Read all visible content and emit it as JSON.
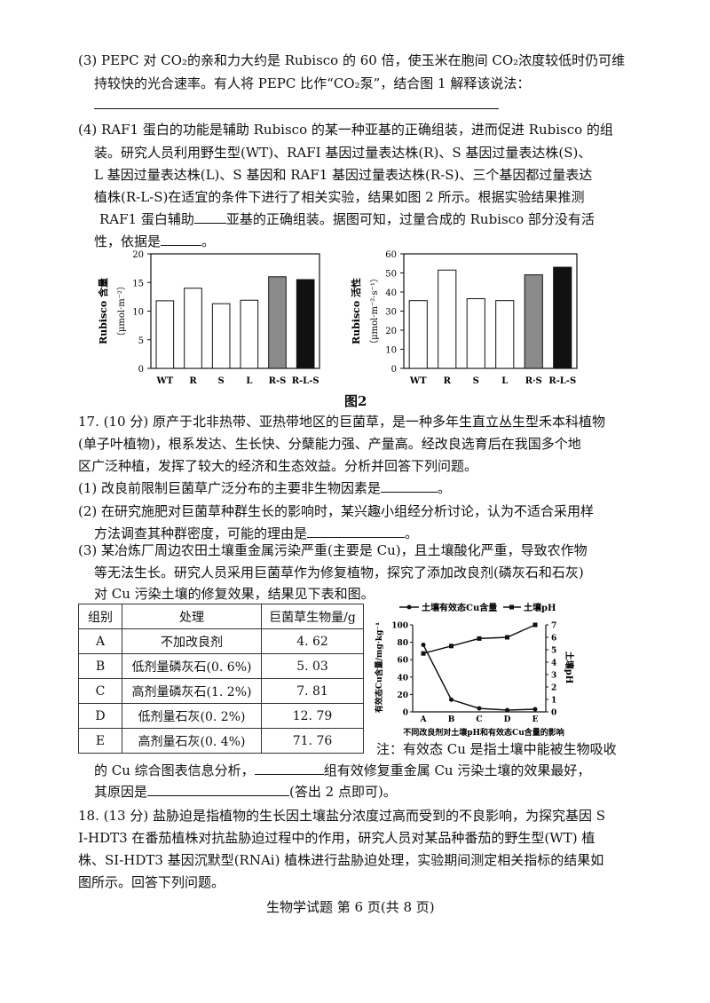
{
  "q3": {
    "line1": "(3) PEPC 对 CO₂的亲和力大约是 Rubisco 的 60 倍，使玉米在胞间 CO₂浓度较低时仍可维",
    "line2": "持较快的光合速率。有人将 PEPC 比作“CO₂泵”，结合图 1 解释该说法："
  },
  "q4": {
    "line1": "(4) RAF1 蛋白的功能是辅助 Rubisco 的某一种亚基的正确组装，进而促进 Rubisco 的组",
    "line2": "装。研究人员利用野生型(WT)、RAFI 基因过量表达株(R)、S 基因过量表达株(S)、",
    "line3": "L 基因过量表达株(L)、S 基因和 RAF1 基因过量表达株(R-S)、三个基因都过量表达",
    "line4": "植株(R-L-S)在适宜的条件下进行了相关实验，结果如图 2 所示。根据实验结果推测",
    "line5a": "RAF1 蛋白辅助",
    "line5b": "亚基的正确组装。据图可知，过量合成的 Rubisco 部分没有活",
    "line6a": "性，依据是",
    "line6b": "。"
  },
  "fig2_caption": "图2",
  "chart_data": [
    {
      "type": "bar",
      "ylabel": "Rubisco 含量",
      "yunit": "（μmol·m⁻²）",
      "categories": [
        "WT",
        "R",
        "S",
        "L",
        "R-S",
        "R-L-S"
      ],
      "values": [
        11.8,
        14,
        11.3,
        11.9,
        16,
        15.5
      ],
      "ylim": [
        0,
        20
      ],
      "yticks": [
        0,
        5,
        10,
        15,
        20
      ],
      "fills": [
        "#ffffff",
        "#ffffff",
        "#ffffff",
        "#ffffff",
        "#8a8a8a",
        "#111111"
      ]
    },
    {
      "type": "bar",
      "ylabel": "Rubisco 活性",
      "yunit": "（μmol·m⁻²·s⁻¹）",
      "categories": [
        "WT",
        "R",
        "S",
        "L",
        "R·S",
        "R-L-S"
      ],
      "values": [
        35.5,
        51.5,
        36.5,
        35.5,
        49,
        53
      ],
      "ylim": [
        0,
        60
      ],
      "yticks": [
        0,
        10,
        20,
        30,
        40,
        50,
        60
      ],
      "fills": [
        "#ffffff",
        "#ffffff",
        "#ffffff",
        "#ffffff",
        "#8a8a8a",
        "#111111"
      ]
    },
    {
      "type": "line",
      "legend": [
        "土壤有效态Cu含量",
        "土壤pH"
      ],
      "categories": [
        "A",
        "B",
        "C",
        "D",
        "E"
      ],
      "y_left_label": "有效态Cu含量/mg·kg⁻¹",
      "y_right_label": "土壤pH",
      "y_left_ticks": [
        0,
        20,
        40,
        60,
        80,
        100
      ],
      "y_right_ticks": [
        0,
        1,
        2,
        3,
        4,
        5,
        6,
        7
      ],
      "series": [
        {
          "name": "土壤有效态Cu含量",
          "axis": "left",
          "values": [
            77,
            14,
            4,
            2,
            3
          ]
        },
        {
          "name": "土壤pH",
          "axis": "right",
          "values": [
            4.7,
            5.3,
            5.9,
            6.0,
            7.0
          ]
        }
      ],
      "xlabel": "不同改良剂对土壤pH和有效态Cu含量的影响"
    }
  ],
  "q17": {
    "line1": "17. (10 分) 原产于北非热带、亚热带地区的巨菌草，是一种多年生直立丛生型禾本科植物",
    "line2": "(单子叶植物)，根系发达、生长快、分蘖能力强、产量高。经改良选育后在我国多个地",
    "line3": "区广泛种植，发挥了较大的经济和生态效益。分析并回答下列问题。",
    "p1a": "(1) 改良前限制巨菌草广泛分布的主要非生物因素是",
    "p1b": "。",
    "p2a": "(2) 在研究施肥对巨菌草种群生长的影响时，某兴趣小组经分析讨论，认为不适合采用样",
    "p2b": "方法调查其种群密度，可能的理由是",
    "p2c": "。",
    "p3a": "(3) 某冶炼厂周边农田土壤重金属污染严重(主要是 Cu)，且土壤酸化严重，导致农作物",
    "p3b": "等无法生长。研究人员采用巨菌草作为修复植物，探究了添加改良剂(磷灰石和石灰)",
    "p3c": "对 Cu 污染土壤的修复效果，结果见下表和图。",
    "note1": "注：有效态 Cu 是指土壤中能被生物吸收",
    "note2a": "的 Cu 综合图表信息分析，",
    "note2b": "组有效修复重金属 Cu 污染土壤的效果最好，",
    "note3a": "其原因是",
    "note3b": "(答出 2 点即可)。"
  },
  "table": {
    "headers": [
      "组别",
      "处理",
      "巨菌草生物量/g"
    ],
    "rows": [
      [
        "A",
        "不加改良剂",
        "4. 62"
      ],
      [
        "B",
        "低剂量磷灰石(0. 6%)",
        "5. 03"
      ],
      [
        "C",
        "高剂量磷灰石(1. 2%)",
        "7. 81"
      ],
      [
        "D",
        "低剂量石灰(0. 2%)",
        "12. 79"
      ],
      [
        "E",
        "高剂量石灰(0. 4%)",
        "71. 76"
      ]
    ]
  },
  "q18": {
    "line1": "18. (13 分) 盐胁迫是指植物的生长因土壤盐分浓度过高而受到的不良影响，为探究基因 S",
    "line2": "I-HDT3 在番茄植株对抗盐胁迫过程中的作用，研究人员对某品种番茄的野生型(WT) 植",
    "line3": "株、SI-HDT3 基因沉默型(RNAi) 植株进行盐胁迫处理，实验期间测定相关指标的结果如",
    "line4": "图所示。回答下列问题。"
  },
  "footer": "生物学试题 第 6 页(共 8 页)"
}
